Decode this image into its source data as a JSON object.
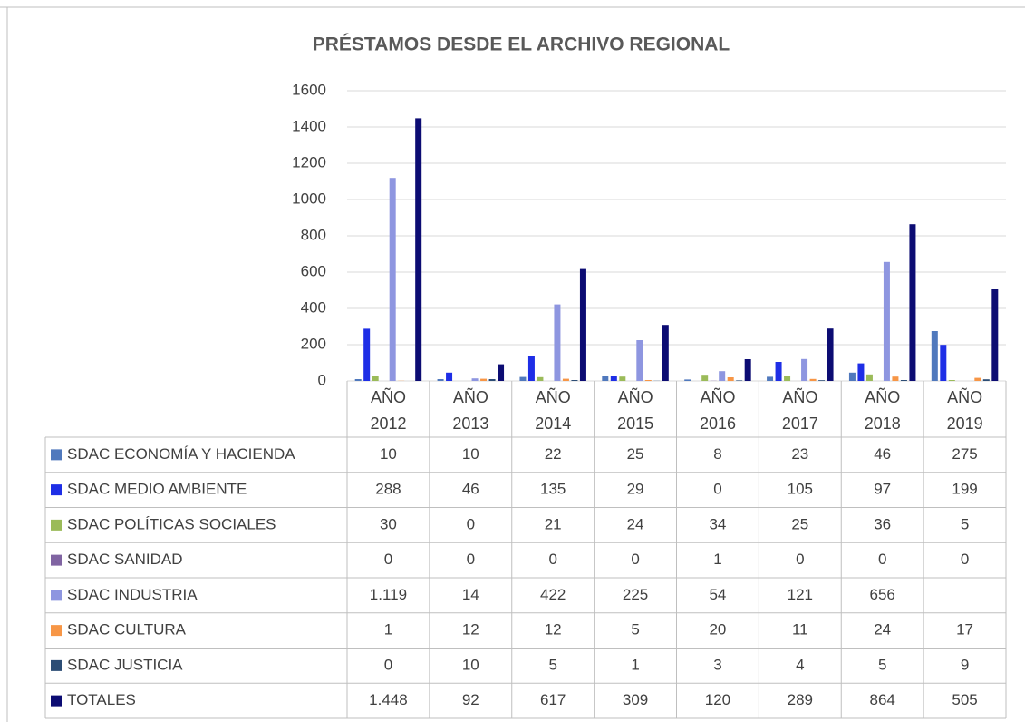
{
  "chart_data": {
    "type": "bar",
    "title": "PRÉSTAMOS DESDE EL ARCHIVO REGIONAL",
    "categories": [
      "AÑO 2012",
      "AÑO 2013",
      "AÑO 2014",
      "AÑO 2015",
      "AÑO 2016",
      "AÑO 2017",
      "AÑO 2018",
      "AÑO 2019"
    ],
    "ylim": [
      0,
      1600
    ],
    "yticks": [
      0,
      200,
      400,
      600,
      800,
      1000,
      1200,
      1400,
      1600
    ],
    "grid": true,
    "series": [
      {
        "name": "SDAC ECONOMÍA Y HACIENDA",
        "color": "#5079bd",
        "values": [
          10,
          10,
          22,
          25,
          8,
          23,
          46,
          275
        ]
      },
      {
        "name": "SDAC MEDIO AMBIENTE",
        "color": "#1e2ee6",
        "values": [
          288,
          46,
          135,
          29,
          0,
          105,
          97,
          199
        ]
      },
      {
        "name": "SDAC POLÍTICAS SOCIALES",
        "color": "#9bbb59",
        "values": [
          30,
          0,
          21,
          24,
          34,
          25,
          36,
          5
        ]
      },
      {
        "name": "SDAC SANIDAD",
        "color": "#8064a2",
        "values": [
          0,
          0,
          0,
          0,
          1,
          0,
          0,
          0
        ]
      },
      {
        "name": "SDAC INDUSTRIA",
        "color": "#8e96e0",
        "values": [
          1119,
          14,
          422,
          225,
          54,
          121,
          656,
          null
        ],
        "value_labels": [
          "1.119",
          "14",
          "422",
          "225",
          "54",
          "121",
          "656",
          null
        ]
      },
      {
        "name": "SDAC CULTURA",
        "color": "#f79646",
        "values": [
          1,
          12,
          12,
          5,
          20,
          11,
          24,
          17
        ]
      },
      {
        "name": "SDAC JUSTICIA",
        "color": "#2c4d75",
        "values": [
          0,
          10,
          5,
          1,
          3,
          4,
          5,
          9
        ]
      },
      {
        "name": "TOTALES",
        "color": "#0c0c73",
        "values": [
          1448,
          92,
          617,
          309,
          120,
          289,
          864,
          505
        ],
        "value_labels": [
          "1.448",
          "92",
          "617",
          "309",
          "120",
          "289",
          "864",
          "505"
        ]
      }
    ]
  }
}
